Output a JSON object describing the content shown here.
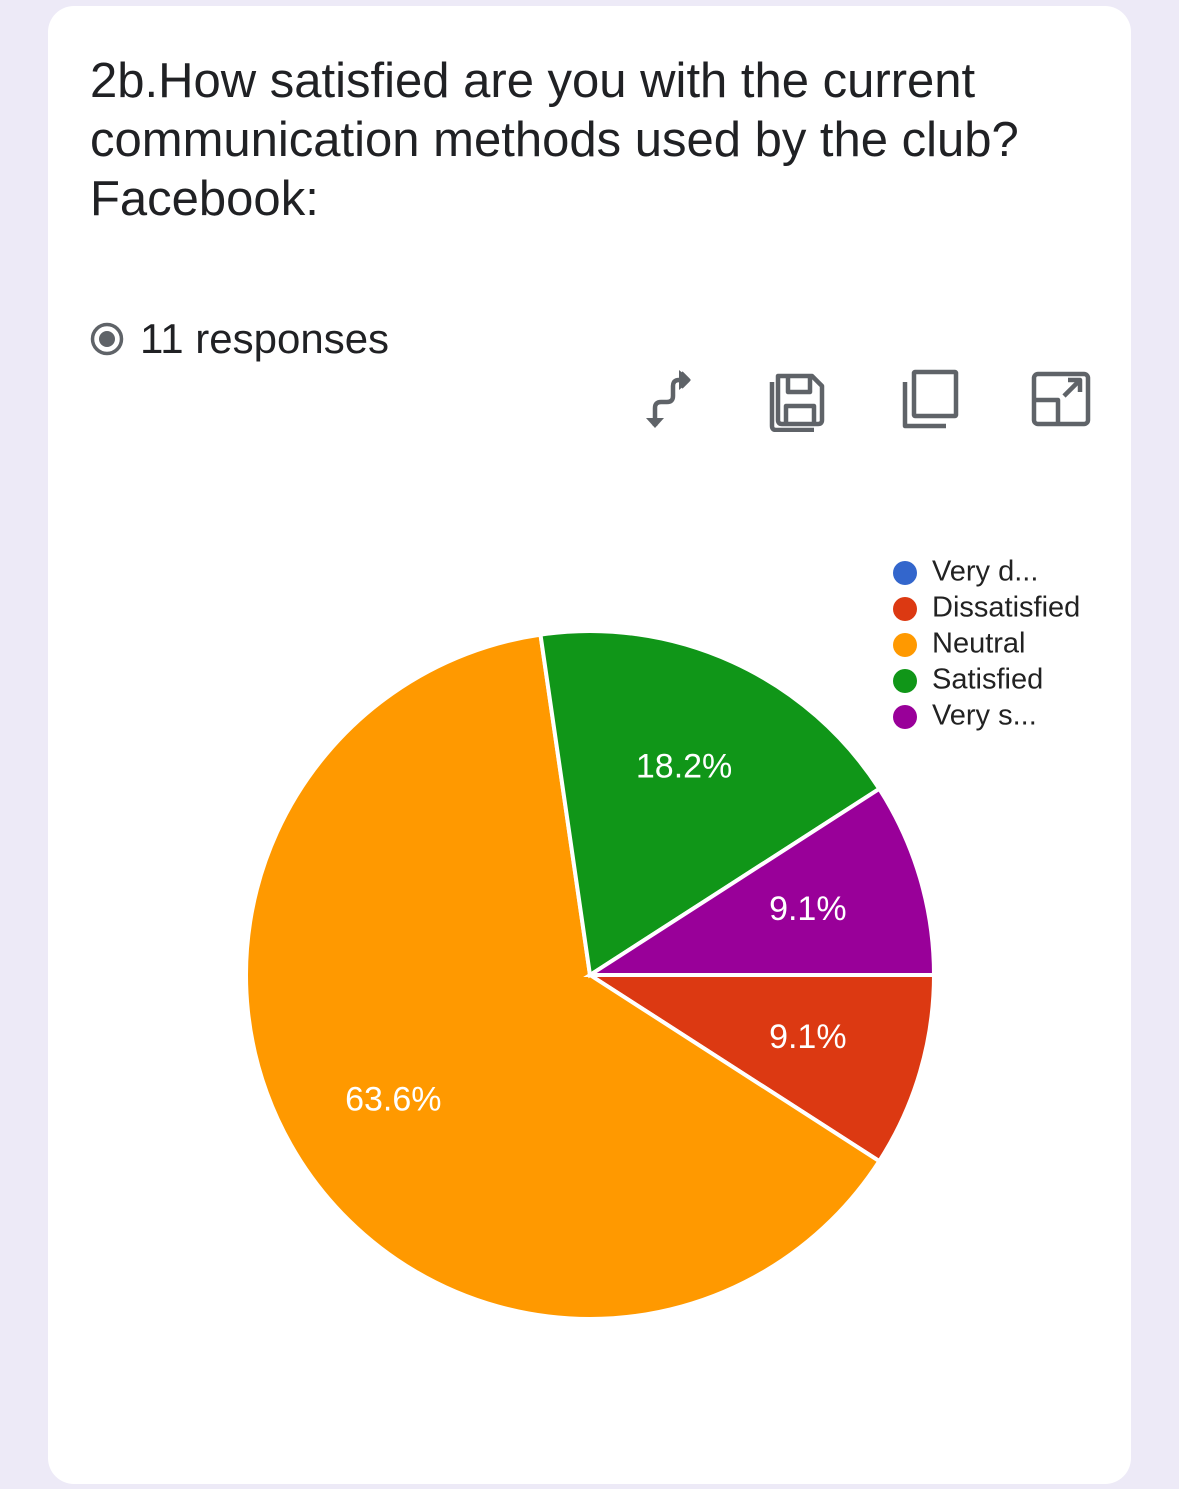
{
  "question": {
    "title": " 2b.How satisfied are you with the current\ncommunication methods used by the club?\nFacebook:"
  },
  "responses": {
    "label": "11 responses"
  },
  "toolbar": {
    "icons": [
      "swap-vert-icon",
      "save-icon",
      "copy-icon",
      "expand-icon"
    ]
  },
  "chart_data": {
    "type": "pie",
    "title": "",
    "legend_position": "top-right",
    "slices": [
      {
        "name": "Very d...",
        "value": 0,
        "label": "",
        "color": "#3366cc"
      },
      {
        "name": "Dissatisfied",
        "value": 9.1,
        "label": "9.1%",
        "color": "#dc3912"
      },
      {
        "name": "Neutral",
        "value": 63.6,
        "label": "63.6%",
        "color": "#ff9900"
      },
      {
        "name": "Satisfied",
        "value": 18.2,
        "label": "18.2%",
        "color": "#109618"
      },
      {
        "name": "Very s...",
        "value": 9.1,
        "label": "9.1%",
        "color": "#990099"
      }
    ]
  }
}
